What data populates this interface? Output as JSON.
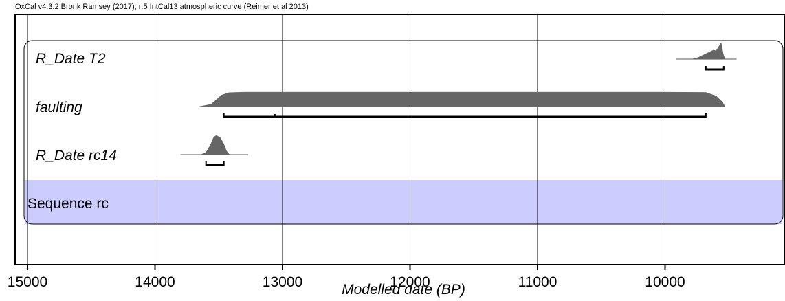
{
  "header_text": "OxCal v4.3.2 Bronk Ramsey (2017); r:5 IntCal13 atmospheric curve (Reimer et al 2013)",
  "colors": {
    "distribution_fill": "#666666",
    "range_bar": "#000000",
    "sequence_band": "#ccccff",
    "gridline": "#000000"
  },
  "chart_data": {
    "type": "area",
    "title": "",
    "xlabel": "Modelled date (BP)",
    "ylabel": "",
    "x_reversed": true,
    "xlim": [
      15000,
      9000
    ],
    "x_ticks": [
      15000,
      14000,
      13000,
      12000,
      11000,
      10000
    ],
    "tick_labels": [
      "15000",
      "14000",
      "13000",
      "12000",
      "11000",
      "10000"
    ],
    "grid": true,
    "rows": [
      {
        "label": "R_Date T2",
        "baseline_range": [
          9910,
          9440
        ],
        "distribution": [
          [
            9910,
            0
          ],
          [
            9790,
            0
          ],
          [
            9740,
            0.1
          ],
          [
            9700,
            0.25
          ],
          [
            9660,
            0.4
          ],
          [
            9620,
            0.55
          ],
          [
            9600,
            0.5
          ],
          [
            9580,
            0.75
          ],
          [
            9560,
            1.0
          ],
          [
            9545,
            0.35
          ],
          [
            9530,
            0
          ],
          [
            9440,
            0
          ]
        ],
        "range_bars": [
          [
            9680,
            9540
          ]
        ],
        "range_ticks": [
          9540
        ]
      },
      {
        "label": "faulting",
        "baseline_range": [
          13650,
          9530
        ],
        "distribution": [
          [
            13650,
            0
          ],
          [
            13560,
            0.15
          ],
          [
            13480,
            0.75
          ],
          [
            13420,
            0.92
          ],
          [
            13300,
            0.95
          ],
          [
            13000,
            0.95
          ],
          [
            12000,
            0.95
          ],
          [
            11000,
            0.95
          ],
          [
            10000,
            0.95
          ],
          [
            9680,
            0.93
          ],
          [
            9600,
            0.7
          ],
          [
            9550,
            0.3
          ],
          [
            9530,
            0
          ]
        ],
        "range_bars": [
          [
            13460,
            9680
          ]
        ],
        "range_ticks": [
          13060
        ]
      },
      {
        "label": "R_Date rc14",
        "baseline_range": [
          13800,
          13270
        ],
        "distribution": [
          [
            13800,
            0
          ],
          [
            13640,
            0
          ],
          [
            13600,
            0.12
          ],
          [
            13570,
            0.45
          ],
          [
            13540,
            0.9
          ],
          [
            13520,
            1.0
          ],
          [
            13490,
            0.9
          ],
          [
            13460,
            0.55
          ],
          [
            13440,
            0.2
          ],
          [
            13420,
            0.03
          ],
          [
            13400,
            0
          ],
          [
            13270,
            0
          ]
        ],
        "range_bars": [
          [
            13600,
            13460
          ]
        ],
        "range_ticks": []
      }
    ],
    "sequence": {
      "label": "Sequence rc"
    }
  }
}
